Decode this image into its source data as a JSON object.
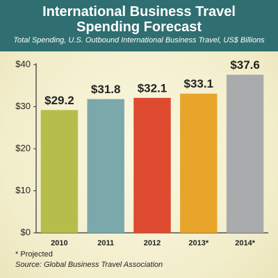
{
  "chart_data": {
    "type": "bar",
    "title": "International Business Travel Spending Forecast",
    "subtitle": "Total Spending, U.S. Outbound International Business Travel, US$ Billions",
    "categories": [
      "2010",
      "2011",
      "2012",
      "2013*",
      "2014*"
    ],
    "values": [
      29.2,
      31.8,
      32.1,
      33.1,
      37.6
    ],
    "value_labels": [
      "$29.2",
      "$31.8",
      "$32.1",
      "$33.1",
      "$37.6"
    ],
    "colors": [
      "#b6bd4a",
      "#7ba8ab",
      "#dd4a2f",
      "#e8a52c",
      "#a9aaac"
    ],
    "ylim": [
      0,
      40
    ],
    "yticks": [
      {
        "value": 0,
        "label": "$0"
      },
      {
        "value": 10,
        "label": "$10"
      },
      {
        "value": 20,
        "label": "$20"
      },
      {
        "value": 30,
        "label": "$30"
      },
      {
        "value": 40,
        "label": "$40"
      }
    ],
    "grid": false,
    "notes": [
      "* Projected",
      "Source: Global Business Travel Association"
    ]
  }
}
